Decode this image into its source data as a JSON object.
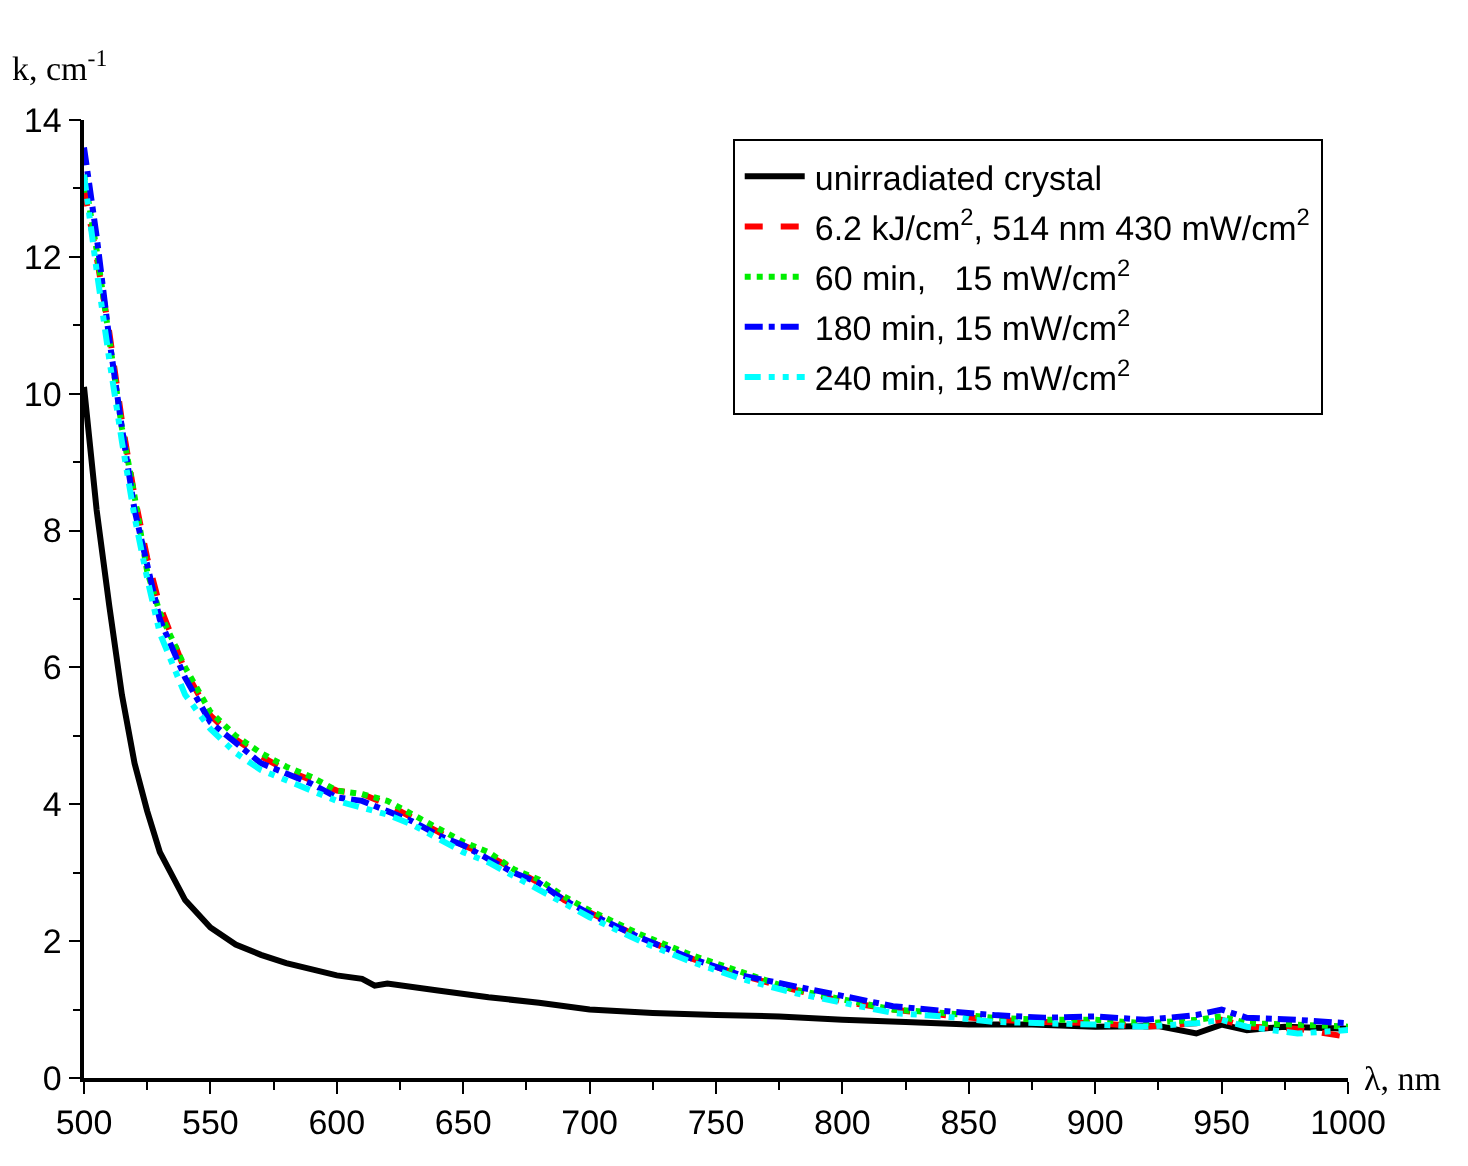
{
  "chart_data": {
    "type": "line",
    "xlabel": "λ, nm",
    "ylabel": "k, cm$^{-1}$",
    "xlim": [
      500,
      1000
    ],
    "ylim": [
      0,
      14
    ],
    "xticks": [
      500,
      550,
      600,
      650,
      700,
      750,
      800,
      850,
      900,
      950,
      1000
    ],
    "yticks": [
      0,
      2,
      4,
      6,
      8,
      10,
      12,
      14
    ],
    "legend": "top right",
    "series": [
      {
        "name": "unirradiated crystal",
        "color": "#000000",
        "line_style": "solid",
        "x": [
          500,
          505,
          510,
          515,
          520,
          525,
          530,
          540,
          550,
          560,
          570,
          580,
          600,
          610,
          615,
          620,
          640,
          660,
          680,
          700,
          725,
          750,
          775,
          800,
          825,
          850,
          875,
          900,
          925,
          940,
          950,
          960,
          975,
          1000
        ],
        "values": [
          10.1,
          8.3,
          6.9,
          5.6,
          4.6,
          3.9,
          3.3,
          2.6,
          2.2,
          1.95,
          1.8,
          1.68,
          1.5,
          1.45,
          1.35,
          1.38,
          1.28,
          1.18,
          1.1,
          1.0,
          0.95,
          0.92,
          0.9,
          0.85,
          0.82,
          0.78,
          0.78,
          0.75,
          0.76,
          0.65,
          0.78,
          0.7,
          0.75,
          0.72
        ]
      },
      {
        "name": "6.2 kJ/cm$^{2}$, 514 nm 430 mW/cm$^{2}$",
        "color": "#ff0000",
        "line_style": "dashed",
        "x": [
          500,
          505,
          510,
          515,
          520,
          525,
          530,
          540,
          550,
          560,
          570,
          580,
          590,
          600,
          610,
          620,
          630,
          640,
          650,
          660,
          670,
          680,
          690,
          700,
          720,
          740,
          760,
          780,
          800,
          820,
          840,
          860,
          880,
          900,
          920,
          940,
          950,
          960,
          980,
          1000
        ],
        "values": [
          13.0,
          12.0,
          10.9,
          9.6,
          8.5,
          7.6,
          6.9,
          5.95,
          5.3,
          4.95,
          4.7,
          4.5,
          4.35,
          4.2,
          4.15,
          4.0,
          3.8,
          3.6,
          3.4,
          3.25,
          3.05,
          2.85,
          2.6,
          2.42,
          2.05,
          1.75,
          1.5,
          1.3,
          1.12,
          1.0,
          0.92,
          0.85,
          0.82,
          0.8,
          0.75,
          0.8,
          0.85,
          0.75,
          0.72,
          0.6
        ]
      },
      {
        "name": "60 min,   15 mW/cm$^{2}$",
        "color": "#00ee00",
        "line_style": "dotted",
        "x": [
          500,
          505,
          510,
          515,
          520,
          525,
          530,
          540,
          550,
          560,
          570,
          580,
          590,
          600,
          610,
          620,
          630,
          640,
          650,
          660,
          670,
          680,
          690,
          700,
          720,
          740,
          760,
          780,
          800,
          820,
          840,
          860,
          880,
          900,
          920,
          940,
          950,
          960,
          980,
          1000
        ],
        "values": [
          13.2,
          12.1,
          10.8,
          9.5,
          8.5,
          7.4,
          6.8,
          6.0,
          5.35,
          5.0,
          4.75,
          4.55,
          4.4,
          4.2,
          4.15,
          4.05,
          3.85,
          3.65,
          3.45,
          3.3,
          3.05,
          2.9,
          2.65,
          2.45,
          2.1,
          1.8,
          1.55,
          1.3,
          1.15,
          1.0,
          0.95,
          0.88,
          0.85,
          0.85,
          0.8,
          0.85,
          0.9,
          0.8,
          0.78,
          0.75
        ]
      },
      {
        "name": "180 min, 15 mW/cm$^{2}$",
        "color": "#0000ff",
        "line_style": "dashdot",
        "x": [
          500,
          505,
          510,
          515,
          520,
          525,
          530,
          540,
          550,
          560,
          570,
          580,
          590,
          600,
          610,
          620,
          630,
          640,
          650,
          660,
          670,
          680,
          690,
          700,
          720,
          740,
          760,
          780,
          800,
          820,
          840,
          860,
          880,
          900,
          920,
          940,
          950,
          960,
          980,
          1000
        ],
        "values": [
          13.6,
          12.3,
          10.8,
          9.5,
          8.3,
          7.5,
          6.7,
          5.85,
          5.2,
          4.9,
          4.6,
          4.45,
          4.3,
          4.1,
          4.05,
          3.9,
          3.75,
          3.55,
          3.4,
          3.2,
          3.0,
          2.85,
          2.6,
          2.4,
          2.05,
          1.75,
          1.5,
          1.35,
          1.2,
          1.05,
          0.98,
          0.92,
          0.88,
          0.9,
          0.85,
          0.92,
          1.0,
          0.88,
          0.85,
          0.8
        ]
      },
      {
        "name": "240 min, 15 mW/cm$^{2}$",
        "color": "#00ffff",
        "line_style": "dashdotdot",
        "x": [
          500,
          505,
          510,
          515,
          520,
          525,
          530,
          540,
          550,
          560,
          570,
          580,
          590,
          600,
          610,
          620,
          630,
          640,
          650,
          660,
          670,
          680,
          690,
          700,
          720,
          740,
          760,
          780,
          800,
          820,
          840,
          860,
          880,
          900,
          920,
          940,
          950,
          960,
          980,
          1000
        ],
        "values": [
          13.2,
          11.8,
          10.5,
          9.3,
          8.2,
          7.3,
          6.5,
          5.6,
          5.1,
          4.75,
          4.5,
          4.35,
          4.2,
          4.05,
          3.95,
          3.85,
          3.7,
          3.5,
          3.3,
          3.15,
          2.95,
          2.75,
          2.55,
          2.35,
          2.0,
          1.7,
          1.45,
          1.25,
          1.1,
          0.95,
          0.9,
          0.82,
          0.8,
          0.78,
          0.75,
          0.8,
          0.85,
          0.75,
          0.65,
          0.7
        ]
      }
    ]
  }
}
